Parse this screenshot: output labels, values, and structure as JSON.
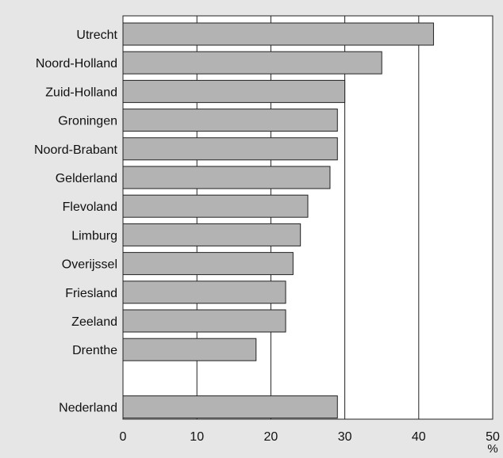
{
  "chart_data": {
    "type": "bar",
    "orientation": "horizontal",
    "categories": [
      "Utrecht",
      "Noord-Holland",
      "Zuid-Holland",
      "Groningen",
      "Noord-Brabant",
      "Gelderland",
      "Flevoland",
      "Limburg",
      "Overijssel",
      "Friesland",
      "Zeeland",
      "Drenthe",
      "",
      "Nederland"
    ],
    "values": [
      42,
      35,
      30,
      29,
      29,
      28,
      25,
      24,
      23,
      22,
      22,
      18,
      null,
      29
    ],
    "title": "",
    "xlabel": "%",
    "ylabel": "",
    "xlim": [
      0,
      50
    ],
    "x_ticks": [
      "0",
      "10",
      "20",
      "30",
      "40",
      "50"
    ],
    "grid": "vertical lines at 10, 20, 30, 40",
    "legend": "none",
    "colors": {
      "bar_fill": "#b3b3b3",
      "bar_stroke": "#222222",
      "plot_background": "#ffffff",
      "page_background": "#e6e6e6",
      "grid": "#222222"
    }
  }
}
